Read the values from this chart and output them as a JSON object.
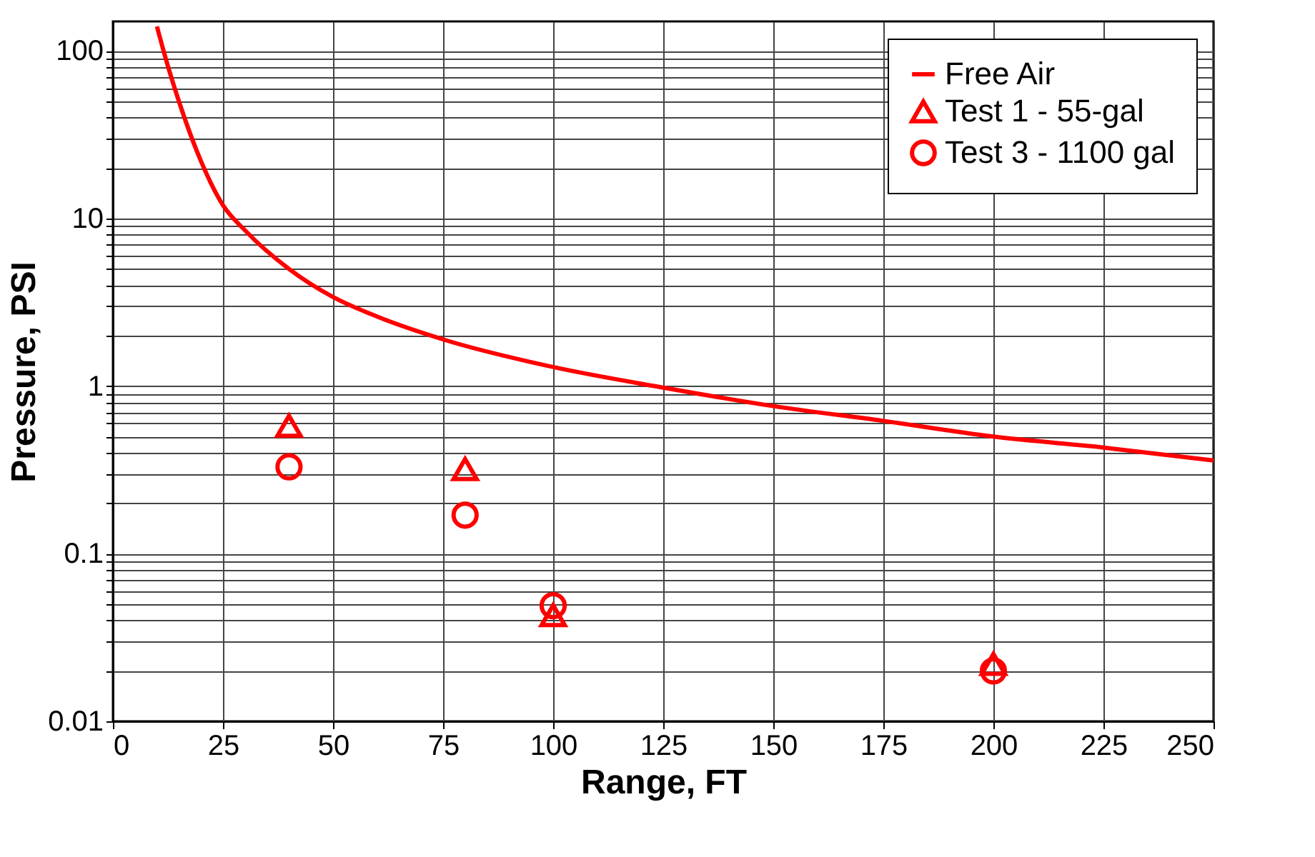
{
  "chart_data": {
    "type": "line",
    "xlabel": "Range, FT",
    "ylabel": "Pressure, PSI",
    "log": "y",
    "grid": true,
    "legend": "top right",
    "xlim": [
      0,
      250
    ],
    "xticks": [
      0,
      25,
      50,
      75,
      100,
      125,
      150,
      175,
      200,
      225,
      250
    ],
    "ylim": [
      0.01,
      150
    ],
    "yticks": [
      0.01,
      {
        "value": 0.02,
        "label": null
      },
      {
        "value": 0.03,
        "label": null
      },
      {
        "value": 0.04,
        "label": null
      },
      {
        "value": 0.05,
        "label": null
      },
      {
        "value": 0.06,
        "label": null
      },
      {
        "value": 0.07,
        "label": null
      },
      {
        "value": 0.08,
        "label": null
      },
      {
        "value": 0.09,
        "label": null
      },
      0.1,
      {
        "value": 0.2,
        "label": null
      },
      {
        "value": 0.3,
        "label": null
      },
      {
        "value": 0.4,
        "label": null
      },
      {
        "value": 0.5,
        "label": null
      },
      {
        "value": 0.6,
        "label": null
      },
      {
        "value": 0.7,
        "label": null
      },
      {
        "value": 0.8,
        "label": null
      },
      {
        "value": 0.9,
        "label": null
      },
      1,
      {
        "value": 2,
        "label": null
      },
      {
        "value": 3,
        "label": null
      },
      {
        "value": 4,
        "label": null
      },
      {
        "value": 5,
        "label": null
      },
      {
        "value": 6,
        "label": null
      },
      {
        "value": 7,
        "label": null
      },
      {
        "value": 8,
        "label": null
      },
      {
        "value": 9,
        "label": null
      },
      10,
      {
        "value": 20,
        "label": null
      },
      {
        "value": 30,
        "label": null
      },
      {
        "value": 40,
        "label": null
      },
      {
        "value": 50,
        "label": null
      },
      {
        "value": 60,
        "label": null
      },
      {
        "value": 70,
        "label": null
      },
      {
        "value": 80,
        "label": null
      },
      {
        "value": 90,
        "label": null
      },
      100
    ],
    "series": [
      {
        "name": "Free Air",
        "color": "#ff0000",
        "marker": "none",
        "line_style": "solid",
        "x": [
          10,
          12,
          15,
          20,
          25,
          30,
          40,
          50,
          60,
          75,
          100,
          125,
          150,
          175,
          200,
          225,
          250
        ],
        "values": [
          140,
          90,
          50,
          22,
          12,
          8.5,
          5,
          3.4,
          2.6,
          1.9,
          1.3,
          0.98,
          0.76,
          0.62,
          0.5,
          0.43,
          0.36
        ]
      },
      {
        "name": "Test 1 - 55-gal",
        "type": "scatter",
        "color": "#ff0000",
        "marker": "triangle",
        "x": [
          40,
          80,
          100,
          200
        ],
        "values": [
          0.58,
          0.32,
          0.043,
          0.022
        ]
      },
      {
        "name": "Test 3 - 1100 gal",
        "type": "scatter",
        "color": "#ff0000",
        "marker": "circle",
        "x": [
          40,
          80,
          100,
          200
        ],
        "values": [
          0.33,
          0.17,
          0.049,
          0.02
        ]
      }
    ]
  }
}
